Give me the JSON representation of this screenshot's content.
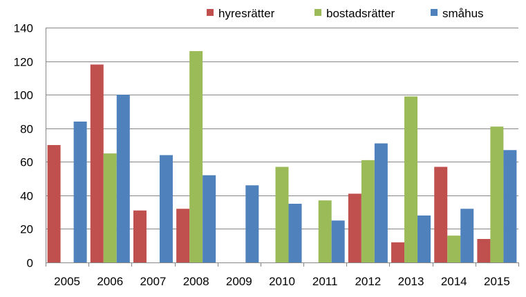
{
  "chart_data": {
    "type": "bar",
    "title": "",
    "xlabel": "",
    "ylabel": "",
    "ylim": [
      0,
      140
    ],
    "yticks": [
      0,
      20,
      40,
      60,
      80,
      100,
      120,
      140
    ],
    "grid": true,
    "legend_position": "top",
    "categories": [
      "2005",
      "2006",
      "2007",
      "2008",
      "2009",
      "2010",
      "2011",
      "2012",
      "2013",
      "2014",
      "2015"
    ],
    "series": [
      {
        "name": "hyresrätter",
        "color": "#c0504d",
        "values": [
          70,
          118,
          31,
          32,
          0,
          0,
          0,
          41,
          12,
          57,
          14
        ]
      },
      {
        "name": "bostadsrätter",
        "color": "#9bbb59",
        "values": [
          0,
          65,
          0,
          126,
          0,
          57,
          37,
          61,
          99,
          16,
          81
        ]
      },
      {
        "name": "småhus",
        "color": "#4f81bd",
        "values": [
          84,
          100,
          64,
          52,
          46,
          35,
          25,
          71,
          28,
          32,
          67
        ]
      }
    ]
  }
}
